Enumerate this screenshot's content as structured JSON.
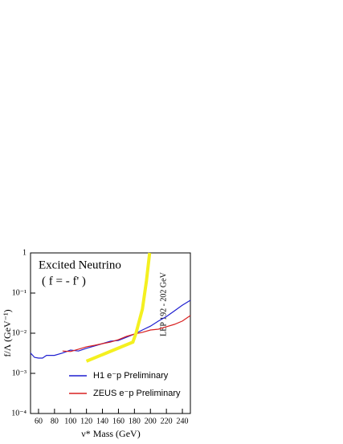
{
  "chart_data": {
    "type": "line",
    "annotations": [
      "Excited Neutrino",
      "( f = - f' )",
      "LEP 192 - 202 GeV"
    ],
    "x_label": "ν* Mass (GeV)",
    "y_label": "f/Λ (GeV⁻¹)",
    "xlim": [
      50,
      250
    ],
    "ylim": [
      0.0001,
      1
    ],
    "y_log": true,
    "xticks": [
      60,
      80,
      100,
      120,
      140,
      160,
      180,
      200,
      220,
      240
    ],
    "yticks": [
      {
        "value": 0.0001,
        "label": "10⁻⁴"
      },
      {
        "value": 0.001,
        "label": "10⁻³"
      },
      {
        "value": 0.01,
        "label": "10⁻²"
      },
      {
        "value": 0.1,
        "label": "10⁻¹"
      },
      1
    ],
    "series": [
      {
        "name": "H1  e⁻p Preliminary",
        "color": "#1f1fd0",
        "x": [
          50,
          55,
          60,
          65,
          70,
          80,
          90,
          100,
          110,
          120,
          130,
          140,
          150,
          160,
          170,
          180,
          190,
          200,
          210,
          220,
          230,
          240,
          250
        ],
        "values": [
          0.0032,
          0.0025,
          0.0024,
          0.0024,
          0.0028,
          0.0028,
          0.0032,
          0.0038,
          0.0036,
          0.0042,
          0.0048,
          0.0055,
          0.0063,
          0.0066,
          0.0079,
          0.0095,
          0.012,
          0.015,
          0.02,
          0.026,
          0.036,
          0.05,
          0.066
        ]
      },
      {
        "name": "ZEUS  e⁻p Preliminary",
        "color": "#d82020",
        "x": [
          90,
          100,
          110,
          120,
          130,
          140,
          150,
          160,
          170,
          180,
          190,
          200,
          210,
          220,
          230,
          240,
          250
        ],
        "values": [
          0.0036,
          0.0035,
          0.004,
          0.0046,
          0.005,
          0.0055,
          0.006,
          0.0069,
          0.0083,
          0.0095,
          0.0105,
          0.012,
          0.0126,
          0.0145,
          0.0166,
          0.02,
          0.0275
        ]
      },
      {
        "name": null,
        "color": "#f4f020",
        "x": [
          120,
          178,
          182,
          190,
          195,
          199
        ],
        "values": [
          0.002,
          0.006,
          0.01,
          0.04,
          0.2,
          1
        ]
      }
    ]
  }
}
